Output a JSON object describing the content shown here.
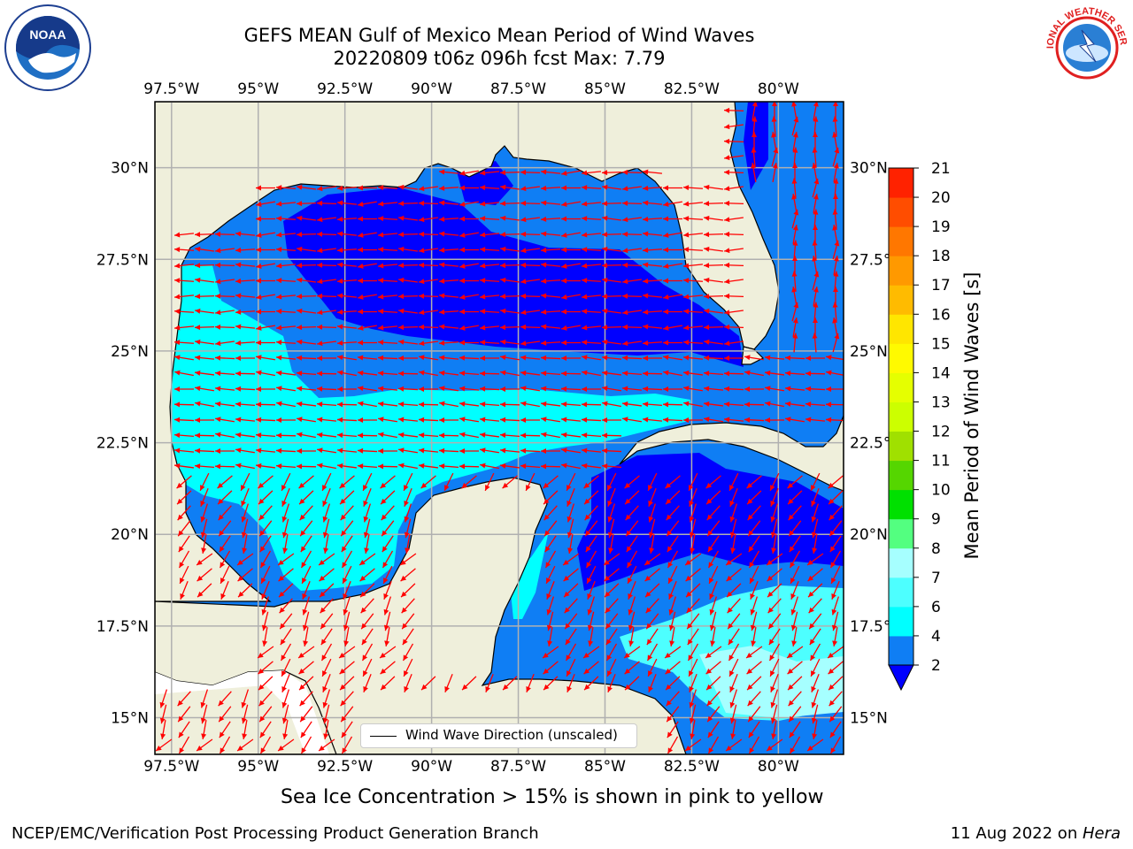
{
  "title": {
    "line1": "GEFS MEAN Gulf of Mexico Mean Period of Wind Waves",
    "line2": "20220809 t06z 096h fcst   Max: 7.79"
  },
  "logos": {
    "left": "noaa-logo",
    "left_text": "NOAA",
    "right": "nws-logo",
    "right_text": "NATIONAL WEATHER SERVICE"
  },
  "map": {
    "lon_labels": [
      "97.5°W",
      "95°W",
      "92.5°W",
      "90°W",
      "87.5°W",
      "85°W",
      "82.5°W",
      "80°W"
    ],
    "lat_labels_left": [
      "30°N",
      "27.5°N",
      "25°N",
      "22.5°N",
      "20°N",
      "17.5°N",
      "15°N"
    ],
    "lat_labels_right": [
      "30°N",
      "27.5°",
      "25°N",
      "22.5°",
      "20°N",
      "17.5°",
      "15°N"
    ],
    "extent": {
      "lon_min": -97.98,
      "lon_max": -78.12,
      "lat_min": 14.0,
      "lat_max": 31.8
    },
    "land_color": "#efefdb",
    "grid_color": "#b0b0b0",
    "arrow_color": "#ff0000",
    "legend_label": "Wind Wave Direction (unscaled)"
  },
  "colorbar": {
    "label": "Mean Period of Wind Waves [s]",
    "ticks": [
      "2",
      "4",
      "6",
      "7",
      "8",
      "9",
      "10",
      "11",
      "12",
      "13",
      "14",
      "15",
      "16",
      "17",
      "18",
      "19",
      "20",
      "21"
    ],
    "colors": [
      "#0f7ef4",
      "#00ffff",
      "#4dffff",
      "#a6ffff",
      "#53ff80",
      "#00e000",
      "#55d600",
      "#a0e000",
      "#ccff00",
      "#e5ff00",
      "#fffa00",
      "#ffe600",
      "#ffbb00",
      "#ff9900",
      "#ff7700",
      "#ff4d00",
      "#ff2200"
    ],
    "extend_color": "#0000ff"
  },
  "note": "Sea Ice Concentration > 15% is shown in pink to yellow",
  "footer": {
    "left": "NCEP/EMC/Verification Post Processing Product Generation Branch",
    "right_prefix": "11 Aug 2022 on ",
    "right_italic": "Hera"
  }
}
